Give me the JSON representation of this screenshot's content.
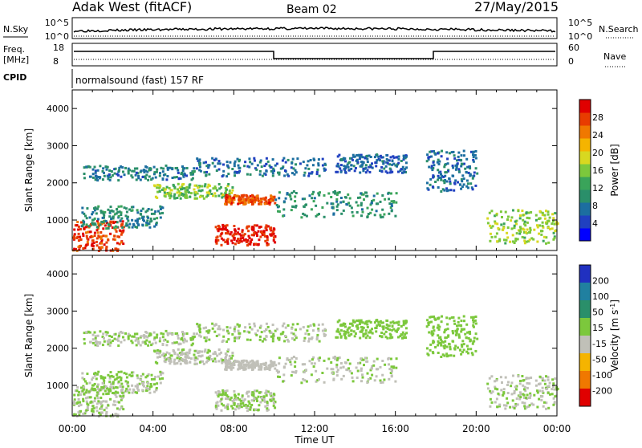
{
  "header": {
    "station": "Adak West (fitACF)",
    "beam": "Beam 02",
    "date": "27/May/2015"
  },
  "panels": {
    "nsky": {
      "label": "N.Sky",
      "ticks_left": [
        "10^5",
        "10^0"
      ],
      "label_right": "N.Search",
      "ticks_right": [
        "10^5",
        "10^0"
      ]
    },
    "freq": {
      "label_line1": "Freq.",
      "label_line2": "[MHz]",
      "ticks_left": [
        "18",
        "8"
      ],
      "label_right": "Nave",
      "ticks_right": [
        "60",
        "0"
      ]
    },
    "cpid": {
      "label": "CPID",
      "mode": "normalsound (fast) 157 RF"
    }
  },
  "chart_data": [
    {
      "type": "heatmap",
      "title": "",
      "parameter": "Power",
      "xlabel": "Time UT",
      "ylabel": "Slant Range [km]",
      "xlim": [
        "00:00",
        "24:00"
      ],
      "ylim": [
        180,
        4500
      ],
      "x_ticks": [
        "00:00",
        "04:00",
        "08:00",
        "12:00",
        "16:00",
        "20:00",
        "00:00"
      ],
      "y_ticks": [
        1000,
        2000,
        3000,
        4000
      ],
      "colorbar": {
        "label": "Power [dB]",
        "ticks": [
          4,
          8,
          12,
          16,
          20,
          24,
          28
        ],
        "range": [
          0,
          30
        ],
        "colors": [
          "#0000ff",
          "#2040c0",
          "#1c6ea0",
          "#2a8f6a",
          "#3aa45a",
          "#7cc83c",
          "#d8d820",
          "#f5b400",
          "#f07800",
          "#e83c00",
          "#e00000"
        ]
      },
      "echo_regions": [
        {
          "t": [
            0.0,
            2.5
          ],
          "r": [
            200,
            1000
          ],
          "level": 26
        },
        {
          "t": [
            0.3,
            4.5
          ],
          "r": [
            800,
            1400
          ],
          "level": 9
        },
        {
          "t": [
            4.0,
            8.0
          ],
          "r": [
            1600,
            2000
          ],
          "level": 15
        },
        {
          "t": [
            0.5,
            6.0
          ],
          "r": [
            2100,
            2500
          ],
          "level": 8
        },
        {
          "t": [
            7.0,
            10.0
          ],
          "r": [
            350,
            900
          ],
          "level": 28
        },
        {
          "t": [
            7.5,
            10.0
          ],
          "r": [
            1450,
            1700
          ],
          "level": 25
        },
        {
          "t": [
            6.0,
            12.5
          ],
          "r": [
            2200,
            2700
          ],
          "level": 7
        },
        {
          "t": [
            10.0,
            16.0
          ],
          "r": [
            1100,
            1800
          ],
          "level": 10
        },
        {
          "t": [
            13.0,
            16.5
          ],
          "r": [
            2300,
            2800
          ],
          "level": 6
        },
        {
          "t": [
            17.5,
            20.0
          ],
          "r": [
            1800,
            2900
          ],
          "level": 7
        },
        {
          "t": [
            20.5,
            24.0
          ],
          "r": [
            400,
            1300
          ],
          "level": 16
        }
      ]
    },
    {
      "type": "heatmap",
      "title": "",
      "parameter": "Velocity",
      "xlabel": "Time UT",
      "ylabel": "Slant Range [km]",
      "xlim": [
        "00:00",
        "24:00"
      ],
      "ylim": [
        180,
        4500
      ],
      "x_ticks": [
        "00:00",
        "04:00",
        "08:00",
        "12:00",
        "16:00",
        "20:00",
        "00:00"
      ],
      "y_ticks": [
        1000,
        2000,
        3000,
        4000
      ],
      "colorbar": {
        "label": "Velocity [m s^-1]",
        "ticks": [
          200,
          100,
          50,
          15,
          -15,
          -50,
          -100,
          -200
        ],
        "range": [
          -250,
          250
        ],
        "colors": [
          "#2030c0",
          "#2080a0",
          "#2a8f6a",
          "#7cc83c",
          "#c0c0b8",
          "#f5b400",
          "#f07800",
          "#e00000"
        ]
      },
      "echo_regions": [
        {
          "t": [
            0.0,
            2.5
          ],
          "r": [
            200,
            1000
          ],
          "level": -5
        },
        {
          "t": [
            0.3,
            4.5
          ],
          "r": [
            800,
            1400
          ],
          "level": 5
        },
        {
          "t": [
            4.0,
            8.0
          ],
          "r": [
            1600,
            2000
          ],
          "level": -10
        },
        {
          "t": [
            0.5,
            6.0
          ],
          "r": [
            2100,
            2500
          ],
          "level": 0
        },
        {
          "t": [
            7.0,
            10.0
          ],
          "r": [
            350,
            900
          ],
          "level": 5
        },
        {
          "t": [
            7.5,
            10.0
          ],
          "r": [
            1450,
            1700
          ],
          "level": -30
        },
        {
          "t": [
            6.0,
            12.5
          ],
          "r": [
            2200,
            2700
          ],
          "level": 0
        },
        {
          "t": [
            10.0,
            16.0
          ],
          "r": [
            1100,
            1800
          ],
          "level": -5
        },
        {
          "t": [
            13.0,
            16.5
          ],
          "r": [
            2300,
            2800
          ],
          "level": 30
        },
        {
          "t": [
            17.5,
            20.0
          ],
          "r": [
            1800,
            2900
          ],
          "level": 20
        },
        {
          "t": [
            20.5,
            24.0
          ],
          "r": [
            400,
            1300
          ],
          "level": 0
        }
      ]
    }
  ]
}
